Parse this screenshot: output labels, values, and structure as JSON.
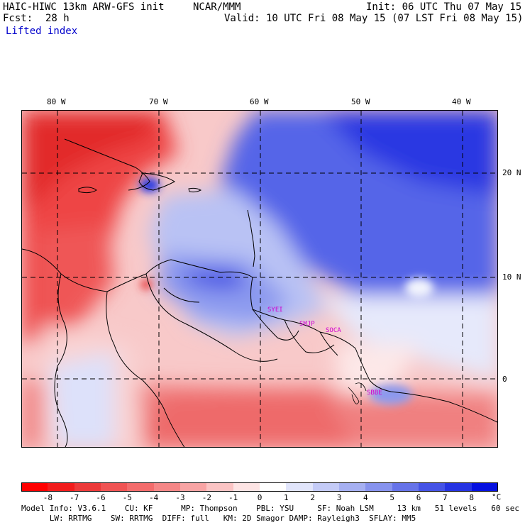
{
  "header": {
    "model": "HAIC-HIWC 13km ARW-GFS init",
    "org": "NCAR/MMM",
    "init": "Init: 06 UTC Thu 07 May 15",
    "fcst_label": "Fcst:",
    "fcst_value": "28 h",
    "valid": "Valid: 10 UTC Fri 08 May 15 (07 LST Fri 08 May 15)",
    "field": "Lifted index"
  },
  "map": {
    "lon_labels": [
      "80 W",
      "70 W",
      "60 W",
      "50 W",
      "40 W"
    ],
    "lat_labels": [
      "20 N",
      "10 N",
      "0"
    ],
    "site_labels": [
      "SYEI",
      "SMJP",
      "SOCA",
      "SBBE"
    ],
    "colors": {
      "strong_neg": "#e8222b",
      "mid_neg": "#f56f6f",
      "weak_neg": "#fbc7c7",
      "neutral": "#fdf2f2",
      "weak_pos": "#d6dcfa",
      "mid_pos": "#8fa0ee",
      "strong_pos": "#2f3fe0",
      "max_pos": "#0a14e0"
    }
  },
  "colorbar": {
    "labels": [
      "-8",
      "-7",
      "-6",
      "-5",
      "-4",
      "-3",
      "-2",
      "-1",
      "0",
      "1",
      "2",
      "3",
      "4",
      "5",
      "6",
      "7",
      "8"
    ],
    "unit": "°C",
    "colors": [
      "#ff0000",
      "#f21c1c",
      "#ed3a3a",
      "#f05454",
      "#f36c6c",
      "#f58787",
      "#f8a4a4",
      "#fbc4c4",
      "#fde4e4",
      "#ffffff",
      "#e1e5fb",
      "#c4cbf7",
      "#a6b0f2",
      "#8793ee",
      "#6673e9",
      "#4553e6",
      "#2533e2",
      "#0510e0"
    ]
  },
  "footer": {
    "line1": "Model Info: V3.6.1    CU: KF      MP: Thompson    PBL: YSU     SF: Noah LSM     13 km   51 levels   60 sec",
    "line2": "      LW: RRTMG    SW: RRTMG  DIFF: full   KM: 2D Smagor DAMP: Rayleigh3  SFLAY: MM5"
  }
}
